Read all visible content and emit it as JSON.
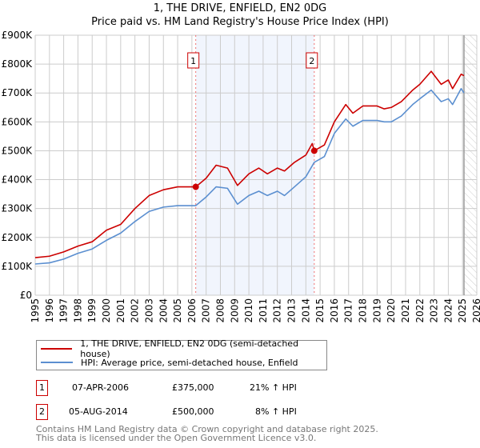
{
  "chart_data": {
    "type": "line",
    "title": "1, THE DRIVE, ENFIELD, EN2 0DG",
    "subtitle": "Price paid vs. HM Land Registry's House Price Index (HPI)",
    "xlim": [
      1995,
      2026
    ],
    "ylim": [
      0,
      900000
    ],
    "x_ticks": [
      "1995",
      "1996",
      "1997",
      "1998",
      "1999",
      "2000",
      "2001",
      "2002",
      "2003",
      "2004",
      "2005",
      "2006",
      "2007",
      "2008",
      "2009",
      "2010",
      "2011",
      "2012",
      "2013",
      "2014",
      "2015",
      "2016",
      "2017",
      "2018",
      "2019",
      "2020",
      "2021",
      "2022",
      "2023",
      "2024",
      "2025",
      "2026"
    ],
    "y_ticks": [
      {
        "v": 0,
        "l": "£0"
      },
      {
        "v": 100000,
        "l": "£100K"
      },
      {
        "v": 200000,
        "l": "£200K"
      },
      {
        "v": 300000,
        "l": "£300K"
      },
      {
        "v": 400000,
        "l": "£400K"
      },
      {
        "v": 500000,
        "l": "£500K"
      },
      {
        "v": 600000,
        "l": "£600K"
      },
      {
        "v": 700000,
        "l": "£700K"
      },
      {
        "v": 800000,
        "l": "£800K"
      },
      {
        "v": 900000,
        "l": "£900K"
      }
    ],
    "grid": true,
    "shaded_range": [
      2006.27,
      2014.59
    ],
    "forecast_start": 2025.1,
    "series": [
      {
        "name": "1, THE DRIVE, ENFIELD, EN2 0DG (semi-detached house)",
        "color": "#cc0000",
        "x": [
          1995,
          1996,
          1997,
          1998,
          1999,
          2000,
          2001,
          2002,
          2003,
          2004,
          2005,
          2006.27,
          2007,
          2007.7,
          2008.5,
          2009.2,
          2010,
          2010.7,
          2011.3,
          2012,
          2012.5,
          2013.2,
          2014,
          2014.45,
          2014.59,
          2015.3,
          2016,
          2016.8,
          2017.3,
          2018,
          2019,
          2019.5,
          2020,
          2020.7,
          2021.5,
          2022,
          2022.8,
          2023.5,
          2024,
          2024.3,
          2024.9,
          2025.1
        ],
        "y": [
          130000,
          135000,
          150000,
          170000,
          185000,
          225000,
          245000,
          300000,
          345000,
          365000,
          375000,
          375000,
          405000,
          450000,
          440000,
          380000,
          420000,
          440000,
          420000,
          440000,
          430000,
          460000,
          485000,
          525000,
          500000,
          520000,
          600000,
          660000,
          630000,
          655000,
          655000,
          645000,
          650000,
          670000,
          710000,
          730000,
          775000,
          730000,
          745000,
          715000,
          765000,
          760000
        ]
      },
      {
        "name": "HPI: Average price, semi-detached house, Enfield",
        "color": "#5b8fd0",
        "x": [
          1995,
          1996,
          1997,
          1998,
          1999,
          2000,
          2001,
          2002,
          2003,
          2004,
          2005,
          2006.27,
          2007,
          2007.7,
          2008.5,
          2009.2,
          2010,
          2010.7,
          2011.3,
          2012,
          2012.5,
          2013.2,
          2014,
          2014.59,
          2015.3,
          2016,
          2016.8,
          2017.3,
          2018,
          2019,
          2019.5,
          2020,
          2020.7,
          2021.5,
          2022,
          2022.8,
          2023.5,
          2024,
          2024.3,
          2024.9,
          2025.1
        ],
        "y": [
          108000,
          112000,
          125000,
          145000,
          160000,
          190000,
          215000,
          255000,
          290000,
          305000,
          310000,
          310000,
          340000,
          375000,
          370000,
          315000,
          345000,
          360000,
          345000,
          360000,
          345000,
          375000,
          410000,
          460000,
          480000,
          560000,
          610000,
          585000,
          605000,
          605000,
          600000,
          600000,
          620000,
          660000,
          680000,
          710000,
          670000,
          680000,
          660000,
          715000,
          700000
        ]
      }
    ],
    "sales": [
      {
        "label": "1",
        "date": "07-APR-2006",
        "x": 2006.27,
        "price": "£375,000",
        "price_value": 375000,
        "hpi": "21% ↑ HPI"
      },
      {
        "label": "2",
        "date": "05-AUG-2014",
        "x": 2014.59,
        "price": "£500,000",
        "price_value": 500000,
        "hpi": "8% ↑ HPI"
      }
    ]
  },
  "footer": {
    "line1": "Contains HM Land Registry data © Crown copyright and database right 2025.",
    "line2": "This data is licensed under the Open Government Licence v3.0."
  }
}
